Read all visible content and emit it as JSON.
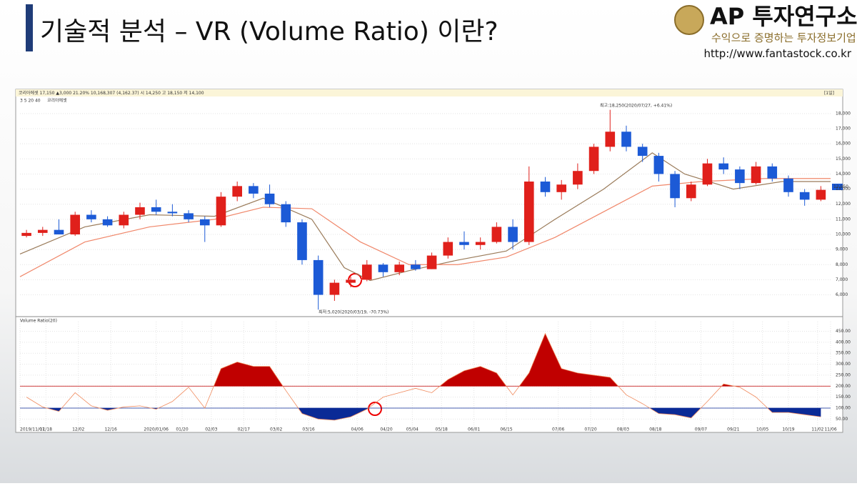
{
  "header": {
    "title": "기술적 분석 – VR (Volume Ratio) 이란?"
  },
  "logo": {
    "name": "AP 투자연구소",
    "tagline": "수익으로 증명하는 투자정보기업",
    "url": "http://www.fantastock.co.kr"
  },
  "chart_data": [
    {
      "type": "candlestick",
      "info_bar": "코리아에셋 17,150 ▲3,000 21.20% 10,168,307 (4,162.37) 시 14,250 고 18,150 저 14,100",
      "period": "[1일]",
      "legend": "3 5 20 40",
      "stock_name": "코리아에셋",
      "annotations": [
        "최고:18,250(2020/07/27, +6.41%)",
        "최저:5,020(2020/03/19, -70.73%)"
      ],
      "price_tag": "12,950",
      "up_color": "#e0201b",
      "down_color": "#1c5ad6",
      "x": [
        2,
        7,
        12,
        17,
        22,
        27,
        32,
        37,
        42,
        47,
        52,
        57,
        62,
        67,
        72,
        77,
        82,
        87,
        92,
        97,
        102,
        107,
        112,
        117,
        122,
        127,
        132,
        137,
        142,
        147,
        152,
        157,
        162,
        167,
        172,
        177,
        182,
        187,
        192,
        197,
        202,
        207,
        212,
        217,
        222,
        227,
        232,
        237,
        242,
        247
      ],
      "open": [
        9900,
        10100,
        10300,
        10000,
        11300,
        11000,
        10600,
        11300,
        11800,
        11500,
        11400,
        11000,
        10600,
        12500,
        13200,
        12700,
        12000,
        10800,
        8300,
        6000,
        6800,
        7000,
        8000,
        7500,
        8000,
        7700,
        8600,
        9500,
        9300,
        9500,
        10500,
        9500,
        13500,
        12800,
        13300,
        14200,
        15800,
        16800,
        15800,
        15200,
        14000,
        12400,
        13300,
        14700,
        14300,
        13400,
        14500,
        13700,
        12800,
        12300
      ],
      "high": [
        10300,
        10500,
        11000,
        11500,
        11600,
        11200,
        11500,
        12100,
        12300,
        12000,
        11600,
        11200,
        12800,
        13500,
        13400,
        13300,
        12200,
        11000,
        8600,
        7000,
        7200,
        8300,
        8100,
        8200,
        8300,
        8800,
        9800,
        10200,
        9800,
        10800,
        11000,
        14500,
        13800,
        13600,
        14700,
        16000,
        18250,
        17200,
        16000,
        15400,
        14200,
        13500,
        15000,
        15100,
        14500,
        14800,
        14700,
        13900,
        13000,
        13200
      ],
      "low": [
        9800,
        9900,
        10000,
        9900,
        10800,
        10500,
        10400,
        11000,
        11300,
        11200,
        10800,
        9500,
        10500,
        12200,
        12400,
        11800,
        10500,
        8000,
        5020,
        5600,
        6500,
        6900,
        7200,
        7300,
        7600,
        7700,
        8400,
        9000,
        9000,
        9400,
        9000,
        9300,
        12500,
        12300,
        13000,
        14000,
        15500,
        15500,
        14800,
        13500,
        11800,
        12200,
        13200,
        14000,
        13000,
        13300,
        13500,
        12500,
        11900,
        12200
      ],
      "close": [
        10100,
        10300,
        10000,
        11300,
        11000,
        10600,
        11300,
        11800,
        11500,
        11400,
        11000,
        10600,
        12500,
        13200,
        12700,
        12000,
        10800,
        8300,
        6000,
        6800,
        7000,
        8000,
        7500,
        8000,
        7700,
        8600,
        9500,
        9300,
        9500,
        10500,
        9500,
        13500,
        12800,
        13300,
        14200,
        15800,
        16800,
        15800,
        15200,
        14000,
        12400,
        13300,
        14700,
        14300,
        13400,
        14500,
        13700,
        12800,
        12300,
        12950
      ],
      "lines": [
        {
          "name": "20",
          "color": "#9a7b5a",
          "x": [
            0,
            20,
            40,
            60,
            75,
            90,
            100,
            108,
            120,
            135,
            150,
            165,
            180,
            195,
            205,
            220,
            235,
            250
          ],
          "values": [
            8700,
            10500,
            11300,
            11200,
            12400,
            11000,
            7800,
            6950,
            7600,
            8300,
            8900,
            11000,
            13000,
            15400,
            14000,
            13000,
            13500,
            13500
          ]
        },
        {
          "name": "40",
          "color": "#f0876a",
          "x": [
            0,
            20,
            40,
            60,
            75,
            90,
            105,
            120,
            135,
            150,
            165,
            180,
            195,
            210,
            230,
            250
          ],
          "values": [
            7200,
            9500,
            10500,
            11000,
            11800,
            11700,
            9500,
            8000,
            8000,
            8500,
            9800,
            11500,
            13200,
            13500,
            13700,
            13700
          ]
        }
      ],
      "xlim": [
        0,
        250
      ],
      "ylim": [
        4700,
        18800
      ],
      "yticks": [
        {
          "value": 6000,
          "label": "6,000"
        },
        {
          "value": 7000,
          "label": "7,000"
        },
        {
          "value": 8000,
          "label": "8,000"
        },
        {
          "value": 9000,
          "label": "9,000"
        },
        {
          "value": 10000,
          "label": "10,000"
        },
        {
          "value": 11000,
          "label": "11,000"
        },
        {
          "value": 12000,
          "label": "12,000"
        },
        {
          "value": 13000,
          "label": "13,000"
        },
        {
          "value": 14000,
          "label": "14,000"
        },
        {
          "value": 15000,
          "label": "15,000"
        },
        {
          "value": 16000,
          "label": "16,000"
        },
        {
          "value": 17000,
          "label": "17,000"
        },
        {
          "value": 18000,
          "label": "18,000"
        }
      ],
      "grid": true
    },
    {
      "type": "area",
      "title": "Volume Ratio(20)",
      "color": "#f08a5d",
      "upper": 200,
      "lower": 100,
      "upper_color": "#c00000",
      "lower_color": "#0a2a96",
      "x": [
        2,
        7,
        12,
        17,
        22,
        27,
        32,
        37,
        42,
        47,
        52,
        57,
        62,
        67,
        72,
        77,
        82,
        87,
        92,
        97,
        102,
        107,
        112,
        117,
        122,
        127,
        132,
        137,
        142,
        147,
        152,
        157,
        162,
        167,
        172,
        177,
        182,
        187,
        192,
        197,
        202,
        207,
        212,
        217,
        222,
        227,
        232,
        237,
        242,
        247
      ],
      "values": [
        150,
        105,
        85,
        170,
        110,
        90,
        105,
        110,
        95,
        130,
        195,
        100,
        280,
        310,
        290,
        290,
        180,
        75,
        50,
        45,
        60,
        95,
        150,
        170,
        190,
        170,
        230,
        270,
        290,
        260,
        160,
        260,
        440,
        280,
        260,
        250,
        240,
        160,
        120,
        75,
        70,
        55,
        130,
        210,
        195,
        150,
        80,
        80,
        70,
        60
      ],
      "xlim": [
        0,
        250
      ],
      "ylim": [
        12,
        494
      ],
      "yticks": [
        {
          "value": 50,
          "label": "50.00"
        },
        {
          "value": 100,
          "label": "100.00"
        },
        {
          "value": 150,
          "label": "150.00"
        },
        {
          "value": 200,
          "label": "200.00"
        },
        {
          "value": 250,
          "label": "250.00"
        },
        {
          "value": 300,
          "label": "300.00"
        },
        {
          "value": 350,
          "label": "350.00"
        },
        {
          "value": 400,
          "label": "400.00"
        },
        {
          "value": 450,
          "label": "450.00"
        }
      ],
      "xticks": [
        {
          "value": 0,
          "label": "2019/11/07"
        },
        {
          "value": 8,
          "label": "11/18"
        },
        {
          "value": 18,
          "label": "12/02"
        },
        {
          "value": 28,
          "label": "12/16"
        },
        {
          "value": 42,
          "label": "2020/01/06"
        },
        {
          "value": 50,
          "label": "01/20"
        },
        {
          "value": 59,
          "label": "02/03"
        },
        {
          "value": 69,
          "label": "02/17"
        },
        {
          "value": 79,
          "label": "03/02"
        },
        {
          "value": 89,
          "label": "03/16"
        },
        {
          "value": 104,
          "label": "04/06"
        },
        {
          "value": 113,
          "label": "04/20"
        },
        {
          "value": 121,
          "label": "05/04"
        },
        {
          "value": 130,
          "label": "05/18"
        },
        {
          "value": 140,
          "label": "06/01"
        },
        {
          "value": 150,
          "label": "06/15"
        },
        {
          "value": 166,
          "label": "07/06"
        },
        {
          "value": 176,
          "label": "07/20"
        },
        {
          "value": 186,
          "label": "08/03"
        },
        {
          "value": 196,
          "label": "08/18"
        },
        {
          "value": 210,
          "label": "09/07"
        },
        {
          "value": 220,
          "label": "09/21"
        },
        {
          "value": 229,
          "label": "10/05"
        },
        {
          "value": 237,
          "label": "10/19"
        },
        {
          "value": 246,
          "label": "11/02"
        },
        {
          "value": 250,
          "label": "11/06"
        }
      ],
      "grid": true
    }
  ]
}
